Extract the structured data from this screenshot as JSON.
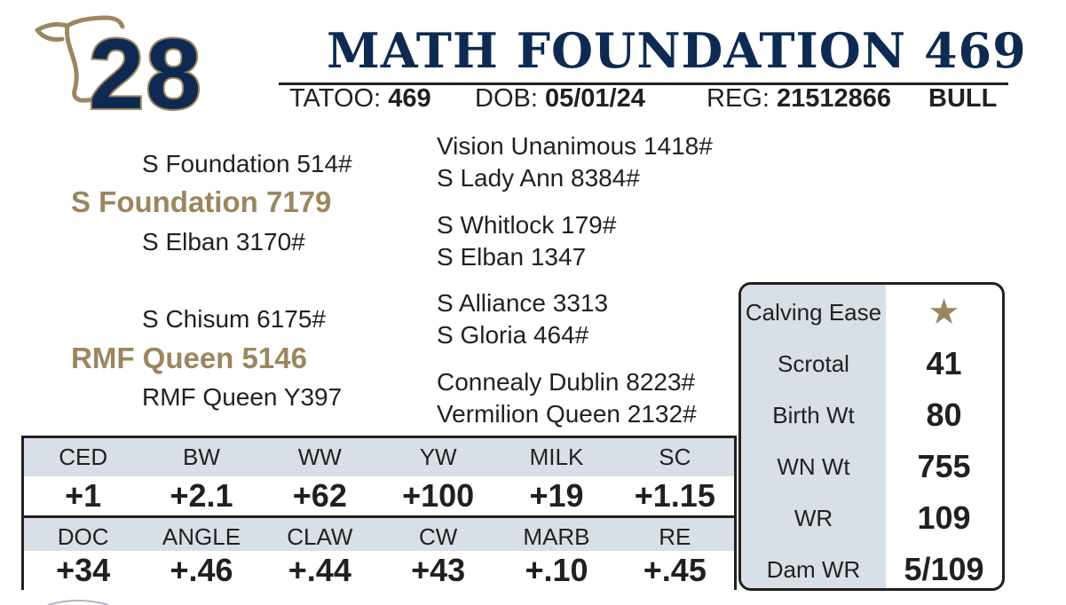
{
  "header": {
    "lot_number": "28",
    "name": "MATH FOUNDATION 469",
    "tattoo_label": "TATOO:",
    "tattoo": "469",
    "dob_label": "DOB:",
    "dob": "05/01/24",
    "reg_label": "REG:",
    "reg": "21512866",
    "sex": "BULL"
  },
  "pedigree": {
    "sire": "S Foundation 7179",
    "sire_sire": "S Foundation 514#",
    "sire_dam": "S Elban 3170#",
    "sire_sire_sire": "Vision Unanimous 1418#",
    "sire_sire_dam": "S Lady Ann 8384#",
    "sire_dam_sire": "S Whitlock 179#",
    "sire_dam_dam": "S Elban 1347",
    "dam": "RMF Queen 5146",
    "dam_sire": "S Chisum 6175#",
    "dam_dam": "RMF Queen Y397",
    "dam_sire_sire": "S Alliance 3313",
    "dam_sire_dam": "S Gloria 464#",
    "dam_dam_sire": "Connealy Dublin 8223#",
    "dam_dam_dam": "Vermilion Queen 2132#"
  },
  "epd": {
    "row1_labels": [
      "CED",
      "BW",
      "WW",
      "YW",
      "MILK",
      "SC"
    ],
    "row1_values": [
      "+1",
      "+2.1",
      "+62",
      "+100",
      "+19",
      "+1.15"
    ],
    "row2_labels": [
      "DOC",
      "ANGLE",
      "CLAW",
      "CW",
      "MARB",
      "RE"
    ],
    "row2_values": [
      "+34",
      "+.46",
      "+.44",
      "+43",
      "+.10",
      "+.45"
    ]
  },
  "stats": {
    "calving_ease_label": "Calving Ease",
    "calving_ease_icon": "star-icon",
    "scrotal_label": "Scrotal",
    "scrotal": "41",
    "birth_wt_label": "Birth Wt",
    "birth_wt": "80",
    "wn_wt_label": "WN Wt",
    "wn_wt": "755",
    "wr_label": "WR",
    "wr": "109",
    "dam_wr_label": "Dam WR",
    "dam_wr": "5/109"
  },
  "colors": {
    "navy": "#0e2a52",
    "gold": "#9b8660",
    "panel_gray": "#d9dfe7"
  }
}
